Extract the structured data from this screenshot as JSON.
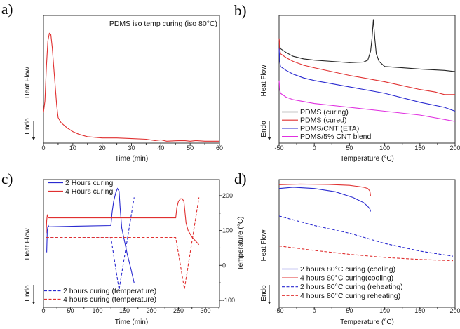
{
  "chart_data": [
    {
      "type": "line",
      "panel_label": "a)",
      "annotation": "PDMS iso temp curing (iso 80°C)",
      "xlabel": "Time (min)",
      "ylabel": "Heat Flow",
      "endo_label": "Endo",
      "xlim": [
        0,
        60
      ],
      "xticks": [
        0,
        10,
        20,
        30,
        40,
        50,
        60
      ],
      "ylim": [
        0,
        1
      ],
      "series": [
        {
          "name": "PDMS iso temp curing",
          "color": "#e03030",
          "dash": false,
          "legend": false,
          "points": [
            [
              0,
              0.24
            ],
            [
              0.5,
              0.33
            ],
            [
              1,
              0.6
            ],
            [
              1.5,
              0.8
            ],
            [
              2,
              0.86
            ],
            [
              2.5,
              0.85
            ],
            [
              3,
              0.75
            ],
            [
              3.5,
              0.6
            ],
            [
              4,
              0.45
            ],
            [
              4.5,
              0.3
            ],
            [
              5,
              0.2
            ],
            [
              6,
              0.16
            ],
            [
              8,
              0.12
            ],
            [
              10,
              0.09
            ],
            [
              12,
              0.07
            ],
            [
              15,
              0.05
            ],
            [
              20,
              0.04
            ],
            [
              25,
              0.04
            ],
            [
              30,
              0.035
            ],
            [
              35,
              0.03
            ],
            [
              38,
              0.02
            ],
            [
              40,
              0.025
            ],
            [
              42,
              0.015
            ],
            [
              45,
              0.018
            ],
            [
              48,
              0.02
            ],
            [
              50,
              0.015
            ],
            [
              52,
              0.02
            ],
            [
              55,
              0.015
            ],
            [
              60,
              0.015
            ]
          ]
        }
      ]
    },
    {
      "type": "line",
      "panel_label": "b)",
      "xlabel": "Temperature (°C)",
      "ylabel": "Heat Flow",
      "endo_label": "Endo",
      "xlim": [
        -50,
        200
      ],
      "xticks": [
        -50,
        0,
        50,
        100,
        150,
        200
      ],
      "ylim": [
        0,
        1
      ],
      "legend_position": "bottom-left",
      "series": [
        {
          "name": "PDMS (curing)",
          "color": "#222222",
          "dash": false,
          "legend": "bl",
          "points": [
            [
              -50,
              0.82
            ],
            [
              -49,
              0.76
            ],
            [
              -48,
              0.74
            ],
            [
              -40,
              0.71
            ],
            [
              -30,
              0.68
            ],
            [
              -15,
              0.66
            ],
            [
              0,
              0.65
            ],
            [
              25,
              0.64
            ],
            [
              50,
              0.63
            ],
            [
              70,
              0.635
            ],
            [
              76,
              0.65
            ],
            [
              80,
              0.72
            ],
            [
              82,
              0.82
            ],
            [
              84,
              0.97
            ],
            [
              86,
              0.82
            ],
            [
              88,
              0.7
            ],
            [
              92,
              0.64
            ],
            [
              100,
              0.6
            ],
            [
              125,
              0.59
            ],
            [
              150,
              0.58
            ],
            [
              185,
              0.57
            ],
            [
              200,
              0.56
            ]
          ]
        },
        {
          "name": "PDMS (cured)",
          "color": "#e03030",
          "dash": false,
          "legend": "bl",
          "points": [
            [
              -50,
              0.82
            ],
            [
              -49,
              0.74
            ],
            [
              -48,
              0.7
            ],
            [
              -40,
              0.67
            ],
            [
              -30,
              0.64
            ],
            [
              -15,
              0.61
            ],
            [
              0,
              0.59
            ],
            [
              50,
              0.53
            ],
            [
              100,
              0.48
            ],
            [
              150,
              0.42
            ],
            [
              172,
              0.4
            ],
            [
              178,
              0.39
            ],
            [
              185,
              0.38
            ],
            [
              200,
              0.38
            ]
          ]
        },
        {
          "name": "PDMS/CNT (ETA)",
          "color": "#2a2ad0",
          "dash": false,
          "legend": "bl",
          "points": [
            [
              -50,
              0.74
            ],
            [
              -49,
              0.64
            ],
            [
              -48,
              0.6
            ],
            [
              -40,
              0.57
            ],
            [
              -30,
              0.54
            ],
            [
              -15,
              0.51
            ],
            [
              0,
              0.49
            ],
            [
              50,
              0.44
            ],
            [
              100,
              0.39
            ],
            [
              150,
              0.32
            ],
            [
              185,
              0.28
            ],
            [
              200,
              0.25
            ]
          ]
        },
        {
          "name": "PDMS/5% CNT blend",
          "color": "#e030e0",
          "dash": false,
          "legend": "bl",
          "points": [
            [
              -50,
              0.49
            ],
            [
              -49,
              0.42
            ],
            [
              -48,
              0.39
            ],
            [
              -40,
              0.36
            ],
            [
              -30,
              0.34
            ],
            [
              -15,
              0.325
            ],
            [
              0,
              0.31
            ],
            [
              50,
              0.28
            ],
            [
              100,
              0.25
            ],
            [
              150,
              0.22
            ],
            [
              200,
              0.17
            ]
          ]
        }
      ]
    },
    {
      "type": "line",
      "panel_label": "c)",
      "xlabel": "Time (min)",
      "ylabel": "Heat Flow",
      "endo_label": "Endo",
      "y2label": "Temperature (°C)",
      "xlim": [
        0,
        326
      ],
      "xticks": [
        0,
        50,
        100,
        150,
        200,
        250,
        300
      ],
      "ylim": [
        0,
        1
      ],
      "y2lim": [
        -120,
        246
      ],
      "y2ticks": [
        -100,
        0,
        100,
        200
      ],
      "series": [
        {
          "name": "2 Hours curing",
          "color": "#2a2ad0",
          "dash": false,
          "legend": "tl",
          "axis": "y",
          "points": [
            [
              6,
              0.43
            ],
            [
              7,
              0.6
            ],
            [
              8,
              0.63
            ],
            [
              9,
              0.64
            ],
            [
              10,
              0.63
            ],
            [
              60,
              0.635
            ],
            [
              125,
              0.64
            ],
            [
              127,
              0.74
            ],
            [
              130,
              0.83
            ],
            [
              134,
              0.9
            ],
            [
              137,
              0.93
            ],
            [
              140,
              0.91
            ],
            [
              142,
              0.78
            ],
            [
              145,
              0.62
            ],
            [
              150,
              0.52
            ],
            [
              155,
              0.42
            ],
            [
              162,
              0.3
            ],
            [
              168,
              0.19
            ]
          ]
        },
        {
          "name": "4 Hours curing",
          "color": "#e03030",
          "dash": false,
          "legend": "tl",
          "axis": "y",
          "points": [
            [
              5,
              0.58
            ],
            [
              6,
              0.68
            ],
            [
              7,
              0.72
            ],
            [
              8,
              0.71
            ],
            [
              10,
              0.7
            ],
            [
              120,
              0.7
            ],
            [
              245,
              0.7
            ],
            [
              247,
              0.78
            ],
            [
              250,
              0.83
            ],
            [
              254,
              0.85
            ],
            [
              257,
              0.85
            ],
            [
              260,
              0.83
            ],
            [
              262,
              0.75
            ],
            [
              264,
              0.66
            ],
            [
              268,
              0.6
            ],
            [
              275,
              0.55
            ],
            [
              288,
              0.49
            ]
          ]
        },
        {
          "name": "2 hours curing (temperature)",
          "color": "#2a2ad0",
          "dash": true,
          "legend": "bl",
          "axis": "y2",
          "points": [
            [
              5,
              80
            ],
            [
              125,
              80
            ],
            [
              140,
              -70
            ],
            [
              168,
              195
            ]
          ]
        },
        {
          "name": "4 hours curing (temperature)",
          "color": "#e03030",
          "dash": true,
          "legend": "bl",
          "axis": "y2",
          "points": [
            [
              5,
              80
            ],
            [
              245,
              80
            ],
            [
              261,
              -68
            ],
            [
              288,
              195
            ]
          ]
        }
      ]
    },
    {
      "type": "line",
      "panel_label": "d)",
      "xlabel": "Temperature (°C)",
      "ylabel": "Heat Flow",
      "endo_label": "Endo",
      "xlim": [
        -50,
        200
      ],
      "xticks": [
        -50,
        0,
        50,
        100,
        150,
        200
      ],
      "ylim": [
        0,
        1
      ],
      "legend_position": "bottom-left",
      "series": [
        {
          "name": "2 hours 80°C curing (cooling)",
          "color": "#2a2ad0",
          "dash": false,
          "legend": "bl",
          "points": [
            [
              -50,
              0.93
            ],
            [
              -30,
              0.94
            ],
            [
              0,
              0.93
            ],
            [
              30,
              0.905
            ],
            [
              55,
              0.86
            ],
            [
              70,
              0.82
            ],
            [
              76,
              0.79
            ],
            [
              79,
              0.77
            ],
            [
              80,
              0.75
            ]
          ]
        },
        {
          "name": "4 hours 80°C curing(cooling)",
          "color": "#e03030",
          "dash": false,
          "legend": "bl",
          "points": [
            [
              -50,
              0.96
            ],
            [
              -20,
              0.965
            ],
            [
              20,
              0.962
            ],
            [
              50,
              0.955
            ],
            [
              70,
              0.94
            ],
            [
              76,
              0.93
            ],
            [
              79,
              0.91
            ],
            [
              80,
              0.87
            ]
          ]
        },
        {
          "name": "2 hours 80°C curing (reheating)",
          "color": "#2a2ad0",
          "dash": true,
          "legend": "bl",
          "points": [
            [
              -50,
              0.715
            ],
            [
              0,
              0.64
            ],
            [
              50,
              0.58
            ],
            [
              100,
              0.5
            ],
            [
              150,
              0.44
            ],
            [
              197,
              0.4
            ]
          ]
        },
        {
          "name": "4 hours 80°C curing reheating)",
          "color": "#e03030",
          "dash": true,
          "legend": "bl",
          "points": [
            [
              -50,
              0.48
            ],
            [
              0,
              0.445
            ],
            [
              50,
              0.415
            ],
            [
              100,
              0.39
            ],
            [
              150,
              0.375
            ],
            [
              197,
              0.365
            ]
          ]
        }
      ]
    }
  ]
}
